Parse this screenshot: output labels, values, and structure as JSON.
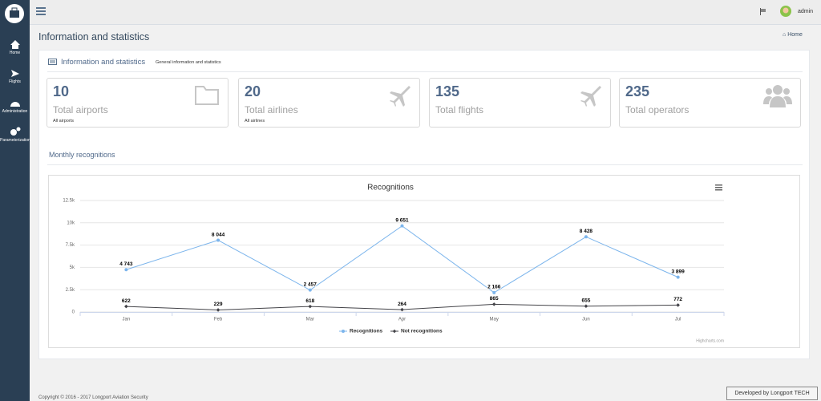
{
  "sidebar": {
    "items": [
      {
        "label": "Home"
      },
      {
        "label": "Flights"
      },
      {
        "label": "Administration"
      },
      {
        "label": "Parameterization"
      }
    ]
  },
  "topbar": {
    "user": "admin"
  },
  "page": {
    "title": "Information and statistics",
    "breadcrumb": "Home"
  },
  "panel": {
    "title": "Information and statistics",
    "subtitle": "General information and statistics"
  },
  "stats": [
    {
      "value": 10,
      "label": "Total airports",
      "link": "All airports"
    },
    {
      "value": 20,
      "label": "Total airlines",
      "link": "All airlines"
    },
    {
      "value": 135,
      "label": "Total flights"
    },
    {
      "value": 235,
      "label": "Total operators"
    }
  ],
  "section": {
    "title": "Monthly recognitions"
  },
  "chart_data": {
    "type": "line",
    "title": "Recognitions",
    "categories": [
      "Jan",
      "Feb",
      "Mar",
      "Apr",
      "May",
      "Jun",
      "Jul"
    ],
    "series": [
      {
        "name": "Recognitions",
        "color": "#7cb5ec",
        "values": [
          4743,
          8044,
          2457,
          9651,
          2166,
          8428,
          3899
        ],
        "value_labels": [
          "4 743",
          "8 044",
          "2 457",
          "9 651",
          "2 166",
          "8 428",
          "3 899"
        ]
      },
      {
        "name": "Not recognitions",
        "color": "#434348",
        "values": [
          622,
          229,
          618,
          264,
          865,
          655,
          772
        ]
      }
    ],
    "ylim": [
      0,
      12500
    ],
    "yticks": [
      0,
      {
        "value": 2500,
        "label": "2.5k"
      },
      {
        "value": 5000,
        "label": "5k"
      },
      {
        "value": 7500,
        "label": "7.5k"
      },
      {
        "value": 10000,
        "label": "10k"
      },
      {
        "value": 12500,
        "label": "12.5k"
      }
    ],
    "grid": true,
    "legend": "bottom",
    "credits": "Highcharts.com"
  },
  "footer": {
    "copyright": "Copyright © 2016 - 2017 Longport Aviation Security",
    "developer": "Developed by Longport TECH"
  }
}
